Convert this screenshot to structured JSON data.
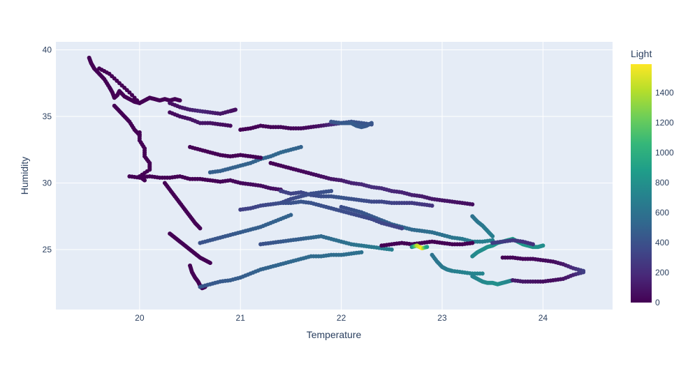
{
  "chart_data": {
    "type": "scatter",
    "title": "",
    "xlabel": "Temperature",
    "ylabel": "Humidity",
    "xlim": [
      19.17,
      24.69
    ],
    "ylim": [
      20.5,
      40.6
    ],
    "x_ticks": [
      20,
      21,
      22,
      23,
      24
    ],
    "y_ticks": [
      25,
      30,
      35,
      40
    ],
    "grid": true,
    "plot_background": "#E5ECF6",
    "colorbar": {
      "title": "Light",
      "range": [
        0,
        1590
      ],
      "ticks": [
        0,
        200,
        400,
        600,
        800,
        1000,
        1200,
        1400
      ],
      "colorscale": [
        "#440154",
        "#482878",
        "#3e4989",
        "#31688e",
        "#26828e",
        "#1f9e89",
        "#35b779",
        "#6ece58",
        "#b5de2b",
        "#fde725"
      ]
    },
    "series": [
      {
        "x": [
          19.5,
          19.52,
          19.55,
          19.6,
          19.65,
          19.7,
          19.73,
          19.75,
          19.78,
          19.8,
          19.85,
          19.9,
          19.95,
          20.0,
          20.05,
          20.1,
          20.15,
          20.2,
          20.25,
          20.3,
          20.35,
          20.4
        ],
        "y": [
          39.4,
          39.0,
          38.6,
          38.2,
          37.8,
          37.2,
          36.8,
          36.4,
          36.6,
          36.9,
          36.5,
          36.3,
          36.1,
          36.0,
          36.2,
          36.4,
          36.3,
          36.2,
          36.3,
          36.2,
          36.3,
          36.2
        ],
        "light": [
          0,
          0,
          0,
          0,
          0,
          0,
          0,
          0,
          0,
          0,
          0,
          0,
          0,
          0,
          0,
          0,
          0,
          0,
          0,
          0,
          0,
          0
        ]
      },
      {
        "x": [
          19.6,
          19.7,
          19.8,
          19.9,
          20.0
        ],
        "y": [
          38.6,
          38.2,
          37.5,
          36.8,
          36.0
        ],
        "light": [
          0,
          0,
          0,
          0,
          0
        ]
      },
      {
        "x": [
          19.75,
          19.8,
          19.85,
          19.9,
          19.95,
          20.0
        ],
        "y": [
          35.8,
          35.4,
          35.0,
          34.6,
          34.0,
          33.6
        ],
        "light": [
          0,
          0,
          0,
          0,
          0,
          0
        ]
      },
      {
        "x": [
          20.3,
          20.4,
          20.5,
          20.6,
          20.7,
          20.8,
          20.9,
          20.95
        ],
        "y": [
          36.0,
          35.7,
          35.5,
          35.4,
          35.3,
          35.2,
          35.4,
          35.5
        ],
        "light": [
          60,
          80,
          120,
          180,
          140,
          100,
          80,
          60
        ]
      },
      {
        "x": [
          20.3,
          20.4,
          20.5,
          20.6,
          20.7,
          20.8,
          20.9
        ],
        "y": [
          35.3,
          35.0,
          34.8,
          34.5,
          34.5,
          34.4,
          34.3
        ],
        "light": [
          40,
          60,
          80,
          100,
          80,
          60,
          40
        ]
      },
      {
        "x": [
          20.0,
          20.0,
          20.05,
          20.05,
          20.1,
          20.1,
          20.0,
          20.05
        ],
        "y": [
          33.8,
          33.2,
          32.6,
          32.0,
          31.5,
          31.0,
          30.5,
          30.2
        ],
        "light": [
          0,
          0,
          0,
          0,
          0,
          0,
          0,
          0
        ]
      },
      {
        "x": [
          19.9,
          20.0,
          20.1,
          20.2,
          20.3,
          20.4,
          20.5,
          20.6,
          20.7,
          20.8,
          20.9,
          21.0,
          21.1,
          21.2,
          21.3,
          21.4
        ],
        "y": [
          30.5,
          30.4,
          30.5,
          30.4,
          30.4,
          30.5,
          30.3,
          30.3,
          30.2,
          30.1,
          30.2,
          30.0,
          29.9,
          29.8,
          29.6,
          29.5
        ],
        "light": [
          0,
          0,
          0,
          0,
          0,
          0,
          0,
          0,
          0,
          10,
          20,
          30,
          40,
          50,
          60,
          70
        ]
      },
      {
        "x": [
          20.25,
          20.3,
          20.35,
          20.4,
          20.45,
          20.5,
          20.55,
          20.6
        ],
        "y": [
          30.0,
          29.5,
          29.0,
          28.5,
          28.0,
          27.5,
          27.0,
          26.6
        ],
        "light": [
          0,
          0,
          0,
          0,
          0,
          0,
          0,
          0
        ]
      },
      {
        "x": [
          20.3,
          20.35,
          20.4,
          20.45,
          20.5,
          20.55,
          20.6,
          20.65,
          20.7
        ],
        "y": [
          26.2,
          25.9,
          25.6,
          25.3,
          25.0,
          24.7,
          24.4,
          24.2,
          24.0
        ],
        "light": [
          0,
          0,
          0,
          0,
          0,
          0,
          0,
          0,
          0
        ]
      },
      {
        "x": [
          20.5,
          20.52,
          20.55,
          20.58,
          20.6,
          20.62,
          20.65
        ],
        "y": [
          23.8,
          23.3,
          22.9,
          22.6,
          22.3,
          22.1,
          22.2
        ],
        "light": [
          0,
          0,
          0,
          0,
          0,
          0,
          0
        ]
      },
      {
        "x": [
          20.6,
          20.7,
          20.8,
          20.9,
          21.0,
          21.1,
          21.2,
          21.3,
          21.4,
          21.5,
          21.6,
          21.7,
          21.8,
          21.9,
          22.0,
          22.1,
          22.2
        ],
        "y": [
          22.2,
          22.4,
          22.6,
          22.7,
          22.9,
          23.2,
          23.5,
          23.7,
          23.9,
          24.1,
          24.3,
          24.5,
          24.5,
          24.6,
          24.6,
          24.7,
          24.8
        ],
        "light": [
          420,
          440,
          450,
          460,
          470,
          480,
          500,
          510,
          520,
          530,
          540,
          550,
          560,
          560,
          570,
          580,
          590
        ]
      },
      {
        "x": [
          20.6,
          20.7,
          20.8,
          20.9,
          21.0,
          21.1,
          21.2,
          21.3,
          21.4,
          21.5
        ],
        "y": [
          25.5,
          25.7,
          25.9,
          26.1,
          26.3,
          26.5,
          26.7,
          27.0,
          27.3,
          27.6
        ],
        "light": [
          400,
          420,
          430,
          440,
          460,
          470,
          480,
          490,
          500,
          500
        ]
      },
      {
        "x": [
          20.7,
          20.8,
          20.9,
          21.0,
          21.1,
          21.2,
          21.3,
          21.4,
          21.5,
          21.6
        ],
        "y": [
          30.8,
          30.9,
          31.1,
          31.3,
          31.5,
          31.8,
          32.0,
          32.3,
          32.5,
          32.7
        ],
        "light": [
          480,
          480,
          490,
          500,
          500,
          510,
          520,
          530,
          520,
          500
        ]
      },
      {
        "x": [
          21.0,
          21.1,
          21.2,
          21.3,
          21.4,
          21.5,
          21.6,
          21.7,
          21.8,
          21.9,
          22.0,
          22.1,
          22.2,
          22.3
        ],
        "y": [
          34.0,
          34.1,
          34.3,
          34.2,
          34.2,
          34.1,
          34.1,
          34.2,
          34.3,
          34.4,
          34.5,
          34.6,
          34.5,
          34.4
        ],
        "light": [
          0,
          0,
          10,
          10,
          20,
          20,
          30,
          40,
          80,
          180,
          300,
          400,
          420,
          400
        ]
      },
      {
        "x": [
          21.9,
          22.0,
          22.05,
          22.1,
          22.15,
          22.2,
          22.25,
          22.3
        ],
        "y": [
          34.6,
          34.5,
          34.5,
          34.5,
          34.3,
          34.2,
          34.3,
          34.5
        ],
        "light": [
          420,
          440,
          450,
          460,
          460,
          450,
          440,
          430
        ]
      },
      {
        "x": [
          21.3,
          21.4,
          21.5,
          21.6,
          21.7,
          21.8,
          21.9,
          22.0,
          22.1,
          22.2,
          22.3,
          22.4,
          22.5,
          22.6,
          22.7,
          22.8,
          22.9,
          23.0,
          23.1,
          23.2,
          23.3
        ],
        "y": [
          31.5,
          31.3,
          31.1,
          30.9,
          30.7,
          30.5,
          30.3,
          30.2,
          30.0,
          29.9,
          29.7,
          29.6,
          29.4,
          29.3,
          29.1,
          29.0,
          28.8,
          28.7,
          28.6,
          28.5,
          28.4
        ],
        "light": [
          0,
          10,
          20,
          30,
          40,
          60,
          90,
          120,
          150,
          180,
          220,
          200,
          180,
          160,
          140,
          120,
          100,
          90,
          80,
          70,
          60
        ]
      },
      {
        "x": [
          21.4,
          21.5,
          21.6,
          21.7,
          21.8,
          21.9,
          22.0,
          22.1,
          22.2,
          22.3,
          22.4,
          22.5,
          22.6,
          22.7,
          22.8,
          22.9
        ],
        "y": [
          29.4,
          29.2,
          29.3,
          29.1,
          29.0,
          29.0,
          28.9,
          28.8,
          28.7,
          28.6,
          28.6,
          28.5,
          28.5,
          28.5,
          28.4,
          28.3
        ],
        "light": [
          300,
          320,
          340,
          360,
          380,
          400,
          420,
          400,
          380,
          360,
          340,
          320,
          300,
          280,
          260,
          240
        ]
      },
      {
        "x": [
          21.4,
          21.5,
          21.6,
          21.7,
          21.8,
          21.9
        ],
        "y": [
          28.5,
          28.8,
          29.0,
          29.2,
          29.3,
          29.4
        ],
        "light": [
          350,
          360,
          370,
          380,
          390,
          400
        ]
      },
      {
        "x": [
          22.0,
          22.1,
          22.2,
          22.3,
          22.4,
          22.5,
          22.6,
          22.7,
          22.8,
          22.9,
          23.0,
          23.1,
          23.2,
          23.3,
          23.4,
          23.5
        ],
        "y": [
          28.2,
          28.0,
          27.8,
          27.5,
          27.2,
          26.9,
          26.7,
          26.5,
          26.4,
          26.3,
          26.1,
          25.9,
          25.8,
          25.6,
          25.6,
          25.7
        ],
        "light": [
          380,
          400,
          420,
          440,
          460,
          500,
          520,
          540,
          560,
          580,
          600,
          620,
          640,
          660,
          680,
          700
        ]
      },
      {
        "x": [
          21.2,
          21.3,
          21.4,
          21.5,
          21.6,
          21.7,
          21.8,
          21.9,
          22.0,
          22.1,
          22.2,
          22.3,
          22.4,
          22.5
        ],
        "y": [
          25.4,
          25.5,
          25.6,
          25.7,
          25.8,
          25.9,
          26.0,
          25.8,
          25.6,
          25.4,
          25.3,
          25.2,
          25.1,
          25.0
        ],
        "light": [
          400,
          420,
          440,
          460,
          480,
          520,
          540,
          560,
          580,
          600,
          620,
          640,
          660,
          680
        ]
      },
      {
        "x": [
          22.4,
          22.5,
          22.6,
          22.7,
          22.8,
          22.9,
          23.0,
          23.1,
          23.2,
          23.3
        ],
        "y": [
          25.3,
          25.4,
          25.5,
          25.4,
          25.5,
          25.6,
          25.5,
          25.4,
          25.4,
          25.5
        ],
        "light": [
          0,
          0,
          0,
          0,
          0,
          0,
          0,
          0,
          0,
          0
        ]
      },
      {
        "x": [
          22.7,
          22.75,
          22.8,
          22.85
        ],
        "y": [
          25.2,
          25.3,
          25.1,
          25.2
        ],
        "light": [
          700,
          1400,
          1590,
          900
        ]
      },
      {
        "x": [
          22.9,
          22.95,
          23.0,
          23.05,
          23.1,
          23.2,
          23.3,
          23.4
        ],
        "y": [
          24.6,
          24.1,
          23.7,
          23.5,
          23.4,
          23.3,
          23.2,
          23.2
        ],
        "light": [
          600,
          620,
          640,
          660,
          680,
          700,
          720,
          720
        ]
      },
      {
        "x": [
          23.3,
          23.35,
          23.4,
          23.45,
          23.5,
          23.55,
          23.6,
          23.65,
          23.7
        ],
        "y": [
          23.0,
          22.8,
          22.6,
          22.5,
          22.5,
          22.4,
          22.5,
          22.6,
          22.7
        ],
        "light": [
          700,
          720,
          740,
          760,
          780,
          800,
          760,
          740,
          720
        ]
      },
      {
        "x": [
          23.7,
          23.8,
          23.9,
          24.0,
          24.1,
          24.2,
          24.3,
          24.4
        ],
        "y": [
          22.7,
          22.6,
          22.6,
          22.6,
          22.7,
          22.8,
          23.1,
          23.3
        ],
        "light": [
          120,
          100,
          80,
          60,
          50,
          80,
          150,
          300
        ]
      },
      {
        "x": [
          23.3,
          23.35,
          23.4,
          23.45,
          23.5,
          23.55,
          23.6,
          23.65,
          23.7,
          23.75,
          23.8,
          23.85,
          23.9,
          23.95,
          24.0
        ],
        "y": [
          24.5,
          24.8,
          25.0,
          25.2,
          25.3,
          25.5,
          25.6,
          25.7,
          25.8,
          25.6,
          25.4,
          25.3,
          25.2,
          25.2,
          25.3
        ],
        "light": [
          740,
          760,
          780,
          800,
          820,
          840,
          860,
          880,
          900,
          880,
          860,
          840,
          820,
          800,
          780
        ]
      },
      {
        "x": [
          23.5,
          23.6,
          23.7,
          23.8,
          23.9
        ],
        "y": [
          25.5,
          25.6,
          25.7,
          25.6,
          25.4
        ],
        "light": [
          300,
          280,
          260,
          240,
          220
        ]
      },
      {
        "x": [
          23.3,
          23.35,
          23.4,
          23.45,
          23.5
        ],
        "y": [
          27.5,
          27.1,
          26.8,
          26.4,
          26.0
        ],
        "light": [
          600,
          620,
          640,
          660,
          680
        ]
      },
      {
        "x": [
          23.6,
          23.7,
          23.8,
          23.9,
          24.0,
          24.1,
          24.2,
          24.3,
          24.4
        ],
        "y": [
          24.4,
          24.4,
          24.3,
          24.3,
          24.2,
          24.1,
          23.9,
          23.6,
          23.4
        ],
        "light": [
          0,
          10,
          20,
          30,
          40,
          50,
          100,
          200,
          300
        ]
      },
      {
        "x": [
          20.5,
          20.6,
          20.7,
          20.8,
          20.9,
          21.0,
          21.1,
          21.2
        ],
        "y": [
          32.7,
          32.5,
          32.3,
          32.1,
          32.0,
          32.1,
          32.0,
          31.9
        ],
        "light": [
          0,
          0,
          0,
          0,
          0,
          0,
          0,
          0
        ]
      },
      {
        "x": [
          21.0,
          21.1,
          21.2,
          21.3,
          21.4,
          21.5,
          21.6,
          21.7,
          21.8,
          21.9,
          22.0,
          22.1,
          22.2,
          22.3,
          22.4,
          22.5,
          22.6
        ],
        "y": [
          28.0,
          28.1,
          28.3,
          28.4,
          28.5,
          28.5,
          28.6,
          28.5,
          28.3,
          28.1,
          27.9,
          27.7,
          27.5,
          27.3,
          27.0,
          26.8,
          26.6
        ],
        "light": [
          300,
          320,
          340,
          360,
          380,
          400,
          420,
          410,
          400,
          390,
          380,
          370,
          360,
          350,
          340,
          330,
          320
        ]
      }
    ]
  }
}
